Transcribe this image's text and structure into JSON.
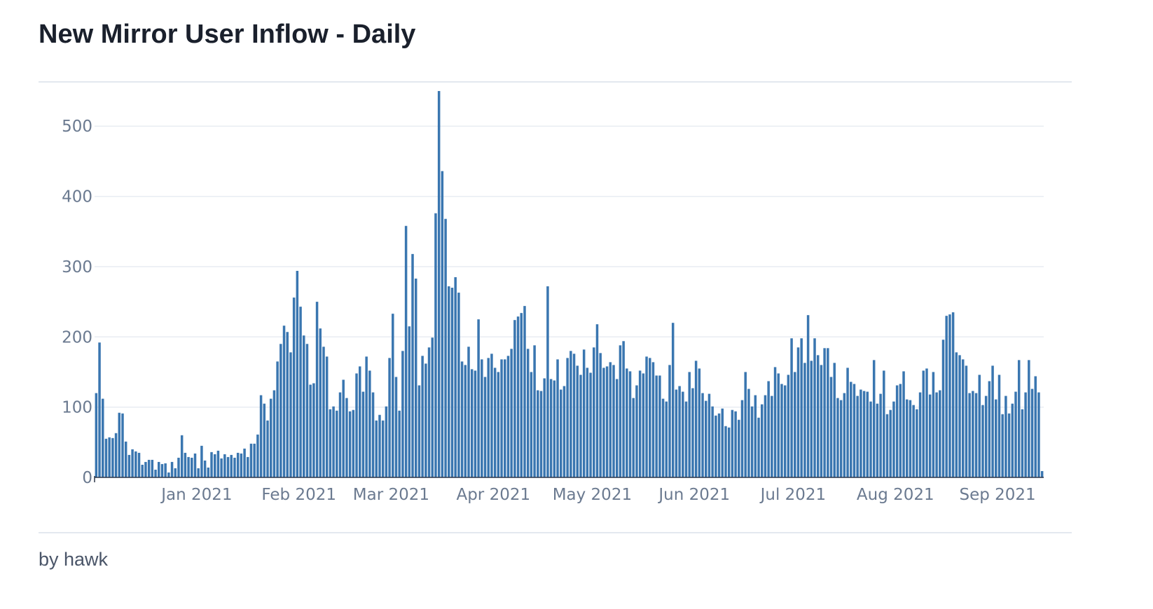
{
  "card": {
    "title": "New Mirror User Inflow - Daily",
    "footer": "by hawk"
  },
  "colors": {
    "bar": "#3a76b0",
    "grid": "#e8ecf2",
    "axis": "#2d3748",
    "tick_text": "#6b7a90"
  },
  "chart_data": {
    "type": "bar",
    "x_start": "2020-12-01",
    "x_end": "2021-09-16",
    "ylim": [
      0,
      560
    ],
    "y_ticks": [
      0,
      100,
      200,
      300,
      400,
      500
    ],
    "grid": true,
    "x_ticks": [
      {
        "date": "2021-01-01",
        "label": "Jan 2021"
      },
      {
        "date": "2021-02-01",
        "label": "Feb 2021"
      },
      {
        "date": "2021-03-01",
        "label": "Mar 2021"
      },
      {
        "date": "2021-04-01",
        "label": "Apr 2021"
      },
      {
        "date": "2021-05-01",
        "label": "May 2021"
      },
      {
        "date": "2021-06-01",
        "label": "Jun 2021"
      },
      {
        "date": "2021-07-01",
        "label": "Jul 2021"
      },
      {
        "date": "2021-08-01",
        "label": "Aug 2021"
      },
      {
        "date": "2021-09-01",
        "label": "Sep 2021"
      }
    ],
    "values": [
      120,
      192,
      112,
      55,
      57,
      56,
      63,
      92,
      91,
      51,
      32,
      40,
      37,
      35,
      18,
      22,
      25,
      25,
      11,
      22,
      19,
      20,
      7,
      22,
      13,
      28,
      60,
      35,
      29,
      28,
      34,
      13,
      45,
      24,
      14,
      36,
      33,
      38,
      27,
      33,
      29,
      32,
      28,
      35,
      34,
      41,
      29,
      48,
      48,
      61,
      117,
      105,
      81,
      112,
      124,
      165,
      190,
      216,
      207,
      178,
      256,
      294,
      243,
      202,
      190,
      132,
      134,
      250,
      212,
      186,
      172,
      97,
      101,
      95,
      121,
      139,
      113,
      94,
      96,
      148,
      158,
      122,
      172,
      152,
      121,
      81,
      89,
      81,
      101,
      170,
      233,
      143,
      95,
      180,
      358,
      215,
      318,
      283,
      131,
      173,
      162,
      185,
      199,
      376,
      550,
      436,
      368,
      272,
      270,
      285,
      263,
      165,
      160,
      186,
      154,
      152,
      225,
      168,
      143,
      170,
      176,
      156,
      150,
      168,
      168,
      173,
      183,
      224,
      229,
      234,
      244,
      183,
      150,
      188,
      124,
      123,
      141,
      272,
      140,
      138,
      168,
      125,
      130,
      170,
      180,
      176,
      159,
      146,
      182,
      156,
      149,
      185,
      218,
      177,
      156,
      158,
      164,
      160,
      140,
      188,
      194,
      155,
      151,
      113,
      131,
      152,
      148,
      172,
      170,
      164,
      145,
      145,
      112,
      108,
      160,
      220,
      125,
      130,
      122,
      108,
      150,
      127,
      166,
      155,
      120,
      109,
      119,
      101,
      88,
      91,
      98,
      73,
      71,
      96,
      94,
      82,
      110,
      150,
      126,
      101,
      117,
      85,
      104,
      117,
      137,
      116,
      157,
      148,
      133,
      131,
      146,
      198,
      150,
      185,
      198,
      163,
      231,
      166,
      198,
      174,
      160,
      184,
      184,
      143,
      163,
      113,
      110,
      120,
      156,
      136,
      133,
      116,
      125,
      123,
      122,
      108,
      167,
      105,
      119,
      152,
      90,
      96,
      108,
      131,
      133,
      151,
      111,
      110,
      103,
      97,
      121,
      152,
      155,
      118,
      150,
      121,
      124,
      196,
      230,
      232,
      235,
      178,
      174,
      168,
      159,
      120,
      123,
      120,
      146,
      103,
      116,
      137,
      159,
      111,
      146,
      90,
      116,
      91,
      105,
      122,
      167,
      97,
      121,
      167,
      126,
      144,
      121,
      9
    ]
  }
}
